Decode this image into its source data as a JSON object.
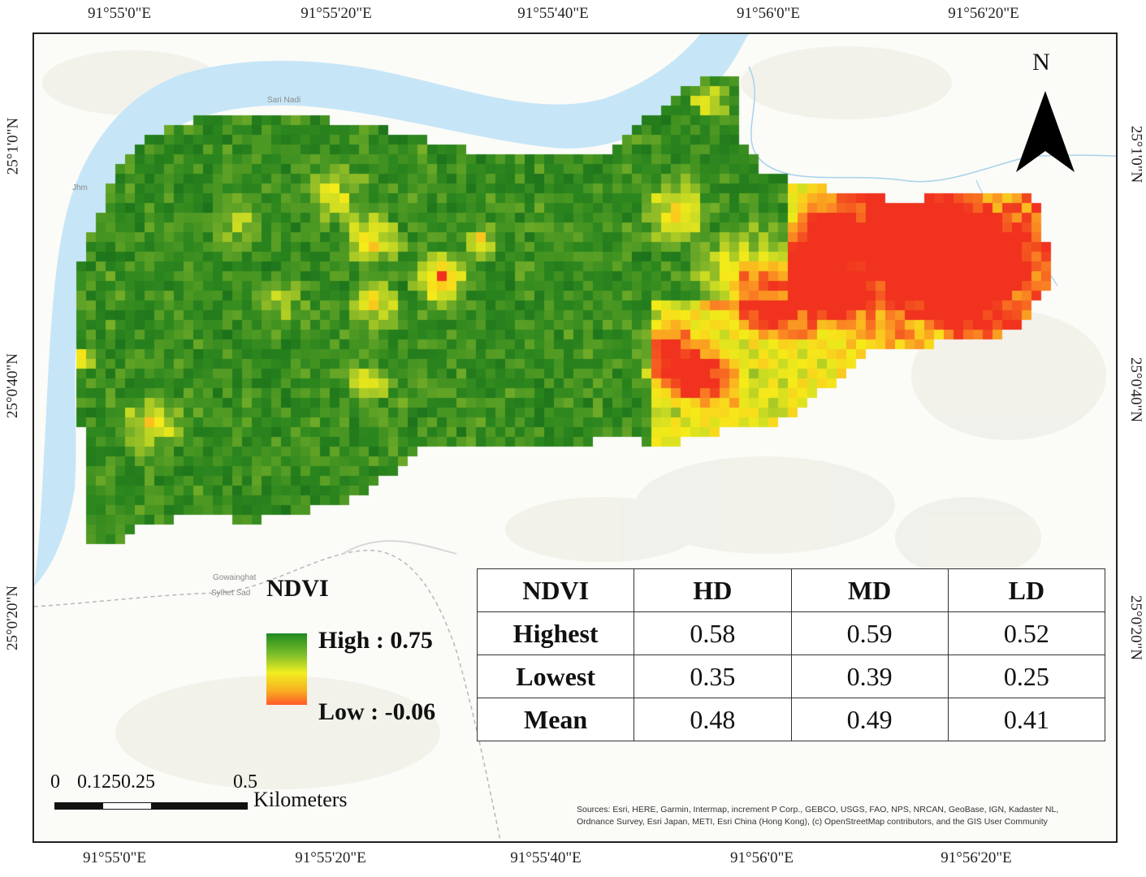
{
  "top_ticks": [
    "91°55'0\"E",
    "91°55'20\"E",
    "91°55'40\"E",
    "91°56'0\"E",
    "91°56'20\"E"
  ],
  "bottom_ticks": [
    "91°55'0\"E",
    "91°55'20\"E",
    "91°55'40\"E",
    "91°56'0\"E",
    "91°56'20\"E"
  ],
  "left_ticks": [
    "25°1'0\"N",
    "25°0'40\"N",
    "25°0'20\"N"
  ],
  "right_ticks": [
    "25°1'0\"N",
    "25°0'40\"N",
    "25°0'20\"N"
  ],
  "basemap_labels": {
    "river_name": "Sari Nadi",
    "place_jhm": "Jhm",
    "place_gowainghat": "Gowainghat",
    "place_sylhet": "Sylhet Sad"
  },
  "north_arrow": {
    "label": "N"
  },
  "legend": {
    "title": "NDVI",
    "high_label": "High : 0.75",
    "low_label": "Low : -0.06",
    "ramp_colors": [
      "#1f8a1f",
      "#f0ee20",
      "#ff5a2a"
    ]
  },
  "stats_table": {
    "headers": [
      "NDVI",
      "HD",
      "MD",
      "LD"
    ],
    "rows": [
      {
        "label": "Highest",
        "values": [
          "0.58",
          "0.59",
          "0.52"
        ]
      },
      {
        "label": "Lowest",
        "values": [
          "0.35",
          "0.39",
          "0.25"
        ]
      },
      {
        "label": "Mean",
        "values": [
          "0.48",
          "0.49",
          "0.41"
        ]
      }
    ]
  },
  "scale_bar": {
    "labels": [
      "0",
      "0.1250.25",
      "0.5"
    ],
    "units": "Kilometers"
  },
  "attribution": "Sources: Esri, HERE, Garmin, Intermap, increment P Corp., GEBCO, USGS, FAO, NPS, NRCAN, GeoBase, IGN, Kadaster NL, Ordnance Survey, Esri Japan, METI, Esri China (Hong Kong), (c) OpenStreetMap contributors, and the GIS User Community",
  "colors": {
    "river": "#c6e6f7",
    "ndvi_high": "#1f7a1f",
    "ndvi_mid": "#f2ec1c",
    "ndvi_low": "#ff3b1f"
  }
}
